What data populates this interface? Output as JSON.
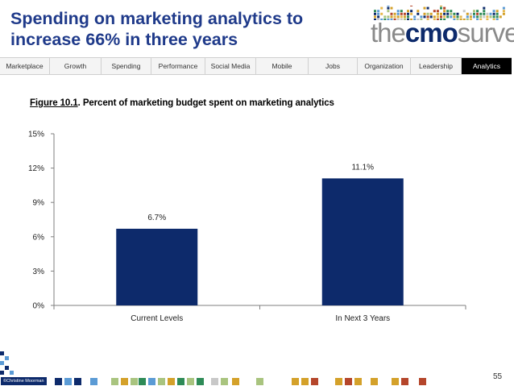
{
  "slide": {
    "title_line1": "Spending on marketing analytics to",
    "title_line2": "increase 66% in three years",
    "page_number": "55",
    "copyright": "©Christine Moorman"
  },
  "logo": {
    "the": "the",
    "cmo": "cmo",
    "survey": "survey"
  },
  "nav": {
    "tabs": [
      {
        "label": "Marketplace"
      },
      {
        "label": "Growth"
      },
      {
        "label": "Spending"
      },
      {
        "label": "Performance"
      },
      {
        "label": "Social Media"
      },
      {
        "label": "Mobile"
      },
      {
        "label": "Jobs"
      },
      {
        "label": "Organization"
      },
      {
        "label": "Leadership"
      },
      {
        "label": "Analytics"
      }
    ],
    "active": "Analytics"
  },
  "figure": {
    "number": "Figure 10.1",
    "caption": ". Percent of marketing budget spent on marketing analytics"
  },
  "colors": {
    "title": "#1f3a8a",
    "bar": "#0d2a6b",
    "logo_blue": "#0d2a6b",
    "logo_grey": "#8a8a8a",
    "square_palette": [
      "#0d2a6b",
      "#5b9bd5",
      "#a9c47f",
      "#d4a12a",
      "#2e8b57",
      "#b5462b",
      "#c8c8c8",
      "#e6b84c"
    ]
  },
  "chart_data": {
    "type": "bar",
    "title": "Percent of marketing budget spent on marketing analytics",
    "categories": [
      "Current Levels",
      "In Next 3 Years"
    ],
    "values": [
      6.7,
      11.1
    ],
    "data_labels": [
      "6.7%",
      "11.1%"
    ],
    "xlabel": "",
    "ylabel": "",
    "ylim": [
      0,
      15
    ],
    "yticks": [
      0,
      3,
      6,
      9,
      12,
      15
    ],
    "ytick_labels": [
      "0%",
      "3%",
      "6%",
      "9%",
      "12%",
      "15%"
    ],
    "grid": false,
    "legend": "none"
  }
}
